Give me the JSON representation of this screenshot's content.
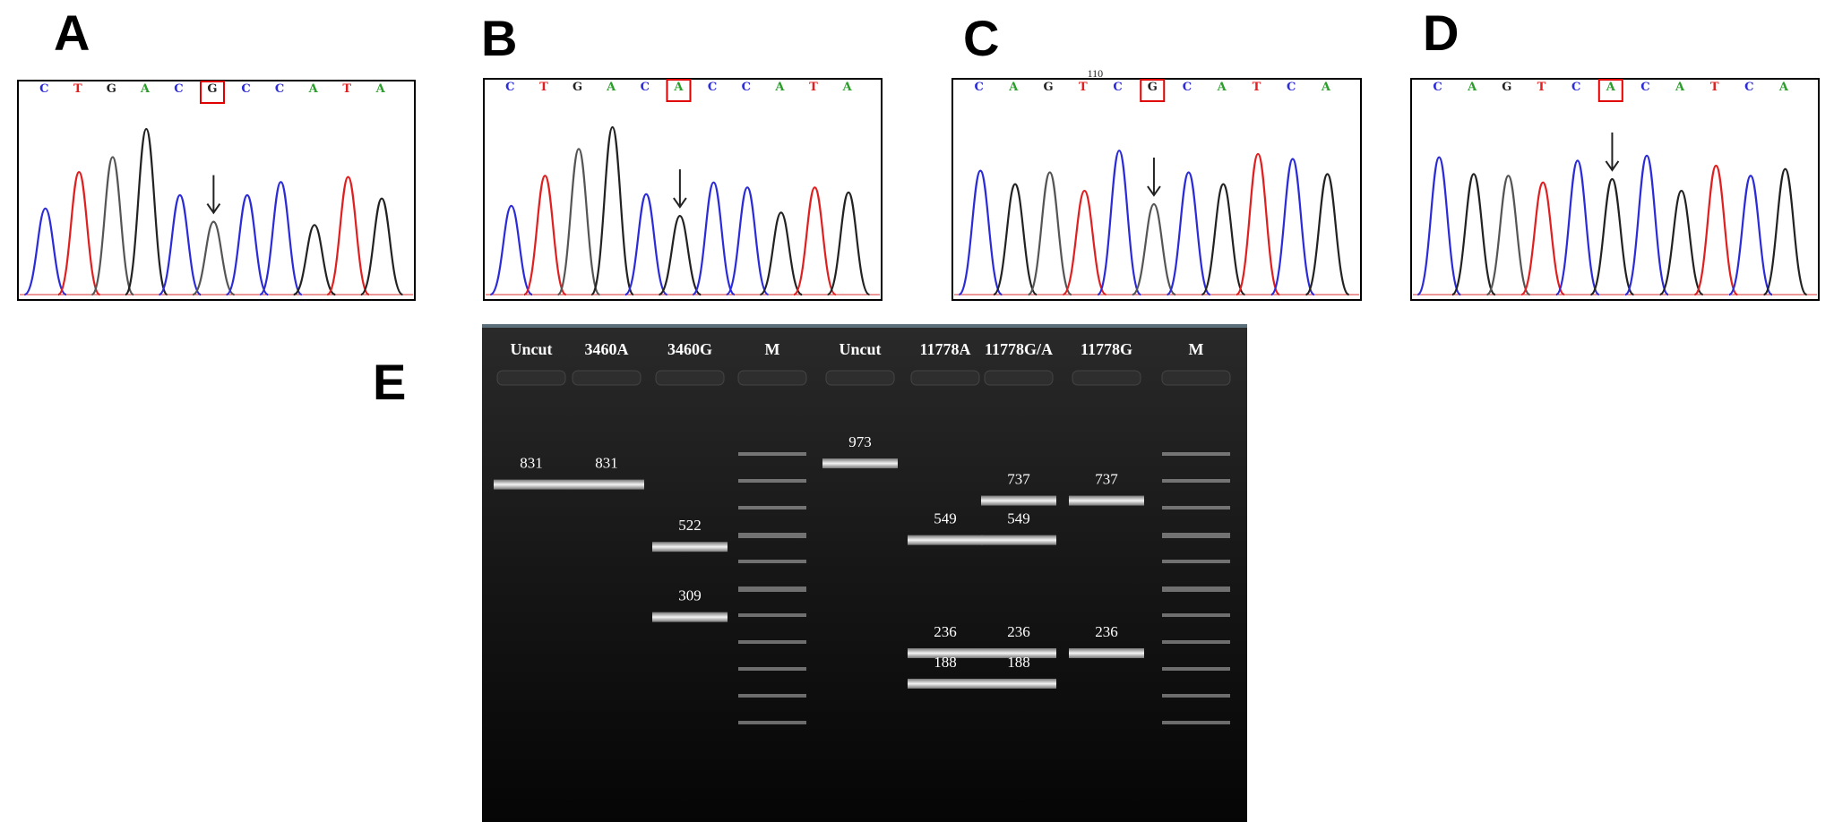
{
  "panels": {
    "A": {
      "letter": "A",
      "bases": [
        "C",
        "T",
        "G",
        "A",
        "C",
        "G",
        "C",
        "C",
        "A",
        "T",
        "A"
      ],
      "highlight_index": 5,
      "peaks": [
        {
          "base": "C",
          "h": 0.52
        },
        {
          "base": "T",
          "h": 0.74
        },
        {
          "base": "N",
          "h": 0.83
        },
        {
          "base": "G",
          "h": 1.0
        },
        {
          "base": "C",
          "h": 0.6
        },
        {
          "base": "N",
          "h": 0.44
        },
        {
          "base": "C",
          "h": 0.6
        },
        {
          "base": "C",
          "h": 0.68
        },
        {
          "base": "G",
          "h": 0.42
        },
        {
          "base": "T",
          "h": 0.71
        },
        {
          "base": "G",
          "h": 0.58
        }
      ],
      "arrow_index": 5
    },
    "B": {
      "letter": "B",
      "bases": [
        "C",
        "T",
        "G",
        "A",
        "C",
        "A",
        "C",
        "C",
        "A",
        "T",
        "A"
      ],
      "highlight_index": 5,
      "peaks": [
        {
          "base": "C",
          "h": 0.53
        },
        {
          "base": "T",
          "h": 0.71
        },
        {
          "base": "N",
          "h": 0.87
        },
        {
          "base": "G",
          "h": 1.0
        },
        {
          "base": "C",
          "h": 0.6
        },
        {
          "base": "G",
          "h": 0.47
        },
        {
          "base": "C",
          "h": 0.67
        },
        {
          "base": "C",
          "h": 0.64
        },
        {
          "base": "G",
          "h": 0.49
        },
        {
          "base": "T",
          "h": 0.64
        },
        {
          "base": "G",
          "h": 0.61
        }
      ],
      "arrow_index": 5
    },
    "C": {
      "letter": "C",
      "bases": [
        "C",
        "A",
        "G",
        "T",
        "C",
        "G",
        "C",
        "A",
        "T",
        "C",
        "A"
      ],
      "highlight_index": 5,
      "position_label": "110",
      "peaks": [
        {
          "base": "C",
          "h": 0.74
        },
        {
          "base": "G",
          "h": 0.66
        },
        {
          "base": "N",
          "h": 0.73
        },
        {
          "base": "T",
          "h": 0.62
        },
        {
          "base": "C",
          "h": 0.86
        },
        {
          "base": "N",
          "h": 0.54
        },
        {
          "base": "C",
          "h": 0.73
        },
        {
          "base": "G",
          "h": 0.66
        },
        {
          "base": "T",
          "h": 0.84
        },
        {
          "base": "C",
          "h": 0.81
        },
        {
          "base": "G",
          "h": 0.72
        }
      ],
      "arrow_index": 5
    },
    "D": {
      "letter": "D",
      "bases": [
        "C",
        "A",
        "G",
        "T",
        "C",
        "A",
        "C",
        "A",
        "T",
        "C",
        "A"
      ],
      "highlight_index": 5,
      "peaks": [
        {
          "base": "C",
          "h": 0.82
        },
        {
          "base": "G",
          "h": 0.72
        },
        {
          "base": "N",
          "h": 0.71
        },
        {
          "base": "T",
          "h": 0.67
        },
        {
          "base": "C",
          "h": 0.8
        },
        {
          "base": "G",
          "h": 0.69
        },
        {
          "base": "C",
          "h": 0.83
        },
        {
          "base": "G",
          "h": 0.62
        },
        {
          "base": "T",
          "h": 0.77
        },
        {
          "base": "C",
          "h": 0.71
        },
        {
          "base": "G",
          "h": 0.75
        }
      ],
      "arrow_index": 5
    }
  },
  "gel": {
    "letter": "E",
    "lanes": [
      {
        "label": "Uncut",
        "bands": [
          {
            "bp": 831,
            "label": "831"
          }
        ]
      },
      {
        "label": "3460A",
        "bands": [
          {
            "bp": 831,
            "label": "831"
          }
        ]
      },
      {
        "label": "3460G",
        "bands": [
          {
            "bp": 522,
            "label": "522"
          },
          {
            "bp": 309,
            "label": "309"
          }
        ]
      },
      {
        "label": "M",
        "bands": []
      },
      {
        "label": "Uncut",
        "bands": [
          {
            "bp": 973,
            "label": "973"
          }
        ]
      },
      {
        "label": "11778A",
        "bands": [
          {
            "bp": 549,
            "label": "549"
          },
          {
            "bp": 236,
            "label": "236"
          },
          {
            "bp": 188,
            "label": "188"
          }
        ]
      },
      {
        "label": "11778G/A",
        "bands": [
          {
            "bp": 737,
            "label": "737"
          },
          {
            "bp": 549,
            "label": "549"
          },
          {
            "bp": 236,
            "label": "236"
          },
          {
            "bp": 188,
            "label": "188"
          }
        ]
      },
      {
        "label": "11778G",
        "bands": [
          {
            "bp": 737,
            "label": "737"
          },
          {
            "bp": 236,
            "label": "236"
          }
        ]
      },
      {
        "label": "M",
        "bands": []
      }
    ]
  },
  "colors": {
    "A": "#2a9d2a",
    "C": "#2b2bd9",
    "G": "#222222",
    "T": "#e02020",
    "N": "#555555",
    "highlight": "#e00000",
    "gel_bg": "#0c0c0c"
  }
}
